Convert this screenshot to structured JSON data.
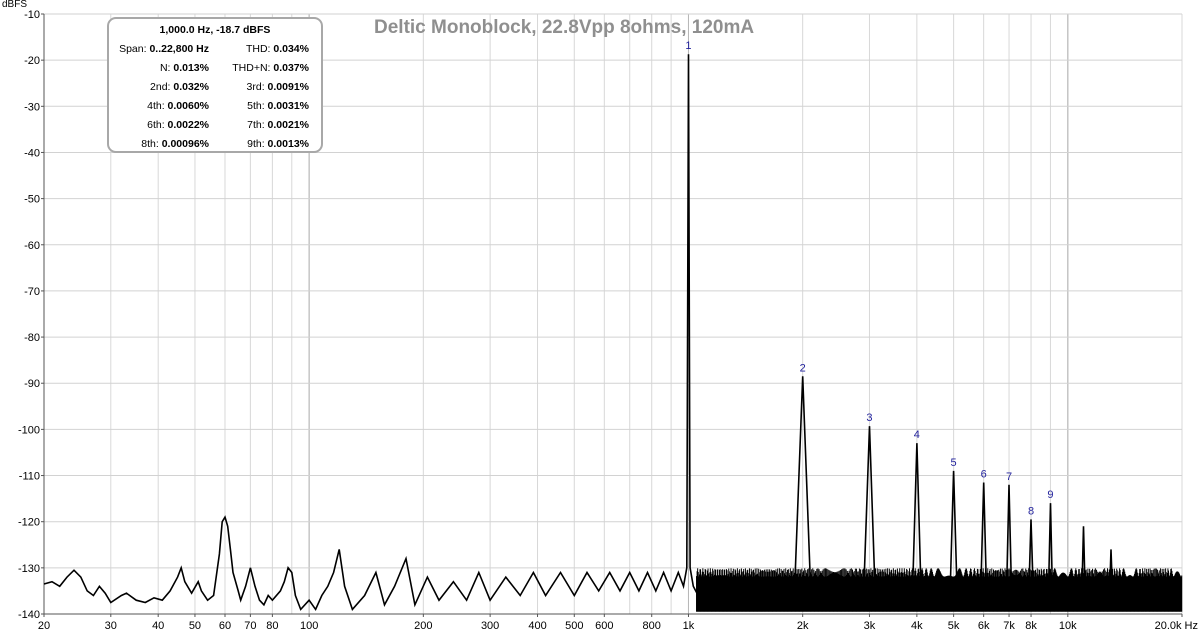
{
  "chart_data": {
    "type": "line",
    "title": "Deltic Monoblock, 22.8Vpp 8ohms, 120mA",
    "ylabel": "dBFS",
    "xlabel": "",
    "x_scale": "log",
    "xlim": [
      20,
      20000
    ],
    "ylim": [
      -140,
      -10
    ],
    "y_ticks": [
      -10,
      -20,
      -30,
      -40,
      -50,
      -60,
      -70,
      -80,
      -90,
      -100,
      -110,
      -120,
      -130,
      -140
    ],
    "y_tick_labels": [
      "-10",
      "-20",
      "-30",
      "-40",
      "-50",
      "-60",
      "-70",
      "-80",
      "-90",
      "-100",
      "-110",
      "-120",
      "-130",
      "-140"
    ],
    "x_ticks": [
      20,
      30,
      40,
      50,
      60,
      70,
      80,
      100,
      200,
      300,
      400,
      500,
      600,
      800,
      1000,
      2000,
      3000,
      4000,
      5000,
      6000,
      7000,
      8000,
      10000,
      20000
    ],
    "x_tick_labels": [
      "20",
      "30",
      "40",
      "50",
      "60",
      "70",
      "80",
      "100",
      "200",
      "300",
      "400",
      "500",
      "600",
      "800",
      "1k",
      "2k",
      "3k",
      "4k",
      "5k",
      "6k",
      "7k",
      "8k",
      "10k",
      "20.0k Hz"
    ],
    "grid": true,
    "series": [
      {
        "color": "#000000",
        "points": [
          [
            20,
            -133.5
          ],
          [
            21,
            -133
          ],
          [
            22,
            -134
          ],
          [
            23,
            -132
          ],
          [
            24,
            -130.5
          ],
          [
            25,
            -132
          ],
          [
            26,
            -135
          ],
          [
            27,
            -136
          ],
          [
            28,
            -134
          ],
          [
            29,
            -135.5
          ],
          [
            30,
            -137.5
          ],
          [
            32,
            -136
          ],
          [
            33,
            -135.5
          ],
          [
            35,
            -137
          ],
          [
            37,
            -137.5
          ],
          [
            39,
            -136.5
          ],
          [
            41,
            -137
          ],
          [
            43,
            -135
          ],
          [
            45,
            -132
          ],
          [
            46,
            -130
          ],
          [
            47,
            -133
          ],
          [
            49,
            -135.5
          ],
          [
            51,
            -133
          ],
          [
            52,
            -135
          ],
          [
            54,
            -137
          ],
          [
            56,
            -136
          ],
          [
            58,
            -127
          ],
          [
            59,
            -120
          ],
          [
            60,
            -119
          ],
          [
            61,
            -121
          ],
          [
            62,
            -126
          ],
          [
            63,
            -131
          ],
          [
            65,
            -135
          ],
          [
            66,
            -137
          ],
          [
            68,
            -134
          ],
          [
            70,
            -130
          ],
          [
            72,
            -134
          ],
          [
            74,
            -137
          ],
          [
            76,
            -138
          ],
          [
            78,
            -136
          ],
          [
            80,
            -137
          ],
          [
            84,
            -135
          ],
          [
            86,
            -133
          ],
          [
            88,
            -130
          ],
          [
            90,
            -131
          ],
          [
            92,
            -136
          ],
          [
            95,
            -139
          ],
          [
            100,
            -137
          ],
          [
            104,
            -139
          ],
          [
            108,
            -136
          ],
          [
            112,
            -134
          ],
          [
            116,
            -131
          ],
          [
            120,
            -126
          ],
          [
            124,
            -134
          ],
          [
            130,
            -139
          ],
          [
            140,
            -136
          ],
          [
            150,
            -131
          ],
          [
            158,
            -138
          ],
          [
            168,
            -134
          ],
          [
            180,
            -128
          ],
          [
            190,
            -138
          ],
          [
            205,
            -132
          ],
          [
            220,
            -137
          ],
          [
            240,
            -133
          ],
          [
            260,
            -137
          ],
          [
            280,
            -131
          ],
          [
            300,
            -137
          ],
          [
            330,
            -132
          ],
          [
            360,
            -136
          ],
          [
            390,
            -131
          ],
          [
            420,
            -136
          ],
          [
            460,
            -131
          ],
          [
            500,
            -136
          ],
          [
            540,
            -131
          ],
          [
            580,
            -135
          ],
          [
            620,
            -131
          ],
          [
            660,
            -135
          ],
          [
            700,
            -131
          ],
          [
            740,
            -135
          ],
          [
            780,
            -131
          ],
          [
            820,
            -135
          ],
          [
            860,
            -131
          ],
          [
            900,
            -135
          ],
          [
            940,
            -131
          ],
          [
            970,
            -134
          ],
          [
            990,
            -130
          ],
          [
            1000,
            -18.7
          ],
          [
            1010,
            -130
          ],
          [
            1030,
            -134
          ],
          [
            1060,
            -136
          ],
          [
            1100,
            -137
          ],
          [
            1150,
            -136
          ],
          [
            1200,
            -138
          ],
          [
            1300,
            -137
          ],
          [
            1400,
            -138
          ],
          [
            1500,
            -137
          ],
          [
            1600,
            -138
          ],
          [
            1700,
            -137
          ],
          [
            1800,
            -138
          ],
          [
            1900,
            -137
          ],
          [
            2000,
            -88.5
          ],
          [
            2100,
            -135
          ],
          [
            2300,
            -134
          ],
          [
            2600,
            -134
          ],
          [
            2900,
            -134
          ],
          [
            3000,
            -99.3
          ],
          [
            3100,
            -134
          ],
          [
            3500,
            -134
          ],
          [
            3900,
            -134
          ],
          [
            4000,
            -103
          ],
          [
            4100,
            -134
          ],
          [
            4600,
            -134
          ],
          [
            4900,
            -134
          ],
          [
            5000,
            -109
          ],
          [
            5100,
            -134
          ],
          [
            5700,
            -134
          ],
          [
            5900,
            -134
          ],
          [
            6000,
            -111.5
          ],
          [
            6100,
            -134
          ],
          [
            6800,
            -134
          ],
          [
            6900,
            -134
          ],
          [
            7000,
            -112
          ],
          [
            7100,
            -134
          ],
          [
            7800,
            -134
          ],
          [
            7900,
            -134
          ],
          [
            8000,
            -119.5
          ],
          [
            8100,
            -134
          ],
          [
            8800,
            -134
          ],
          [
            8900,
            -134
          ],
          [
            9000,
            -116
          ],
          [
            9100,
            -134
          ],
          [
            10800,
            -134
          ],
          [
            10900,
            -134
          ],
          [
            11000,
            -121
          ],
          [
            11100,
            -134
          ],
          [
            12800,
            -134
          ],
          [
            12900,
            -134
          ],
          [
            13000,
            -126
          ],
          [
            13100,
            -134
          ],
          [
            16000,
            -134
          ],
          [
            20000,
            -134
          ]
        ]
      }
    ],
    "harmonic_labels": [
      {
        "label": "1",
        "x": 1000,
        "y": -18.7
      },
      {
        "label": "2",
        "x": 2000,
        "y": -88.5
      },
      {
        "label": "3",
        "x": 3000,
        "y": -99.3
      },
      {
        "label": "4",
        "x": 4000,
        "y": -103
      },
      {
        "label": "5",
        "x": 5000,
        "y": -109
      },
      {
        "label": "6",
        "x": 6000,
        "y": -111.5
      },
      {
        "label": "7",
        "x": 7000,
        "y": -112
      },
      {
        "label": "8",
        "x": 8000,
        "y": -119.5
      },
      {
        "label": "9",
        "x": 9000,
        "y": -116
      }
    ],
    "colors": {
      "trace": "#000000",
      "grid": "#d2d2d2",
      "harmonic_label": "#1f1f9b",
      "title": "#8f8f8f"
    }
  },
  "stats_box": {
    "header": "1,000.0 Hz, -18.7 dBFS",
    "rows": [
      [
        {
          "k": "Span:",
          "v": "0..22,800 Hz"
        },
        {
          "k": "THD:",
          "v": "0.034%"
        }
      ],
      [
        {
          "k": "N:",
          "v": "0.013%"
        },
        {
          "k": "THD+N:",
          "v": "0.037%"
        }
      ],
      [
        {
          "k": "2nd:",
          "v": "0.032%"
        },
        {
          "k": "3rd:",
          "v": "0.0091%"
        }
      ],
      [
        {
          "k": "4th:",
          "v": "0.0060%"
        },
        {
          "k": "5th:",
          "v": "0.0031%"
        }
      ],
      [
        {
          "k": "6th:",
          "v": "0.0022%"
        },
        {
          "k": "7th:",
          "v": "0.0021%"
        }
      ],
      [
        {
          "k": "8th:",
          "v": "0.00096%"
        },
        {
          "k": "9th:",
          "v": "0.0013%"
        }
      ]
    ]
  }
}
